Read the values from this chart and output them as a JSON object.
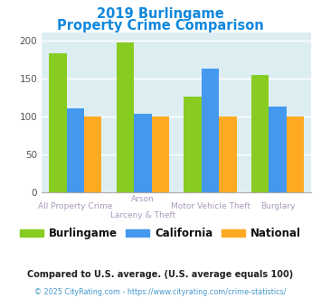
{
  "title_line1": "2019 Burlingame",
  "title_line2": "Property Crime Comparison",
  "cat_labels_line1": [
    "All Property Crime",
    "Arson",
    "Motor Vehicle Theft",
    "Burglary"
  ],
  "cat_labels_line2": [
    "",
    "Larceny & Theft",
    "",
    ""
  ],
  "burlingame": [
    183,
    197,
    126,
    155
  ],
  "california": [
    110,
    103,
    163,
    113
  ],
  "national": [
    100,
    100,
    100,
    100
  ],
  "color_burlingame": "#88cc22",
  "color_california": "#4499ee",
  "color_national": "#ffaa22",
  "ylim": [
    0,
    210
  ],
  "yticks": [
    0,
    50,
    100,
    150,
    200
  ],
  "legend_labels": [
    "Burlingame",
    "California",
    "National"
  ],
  "footnote1": "Compared to U.S. average. (U.S. average equals 100)",
  "footnote2": "© 2025 CityRating.com - https://www.cityrating.com/crime-statistics/",
  "title_color": "#1188dd",
  "footnote1_color": "#222222",
  "footnote2_color": "#4499cc",
  "plot_bg": "#ddeef3",
  "xtick_color": "#aa99bb",
  "grid_color": "#ffffff"
}
